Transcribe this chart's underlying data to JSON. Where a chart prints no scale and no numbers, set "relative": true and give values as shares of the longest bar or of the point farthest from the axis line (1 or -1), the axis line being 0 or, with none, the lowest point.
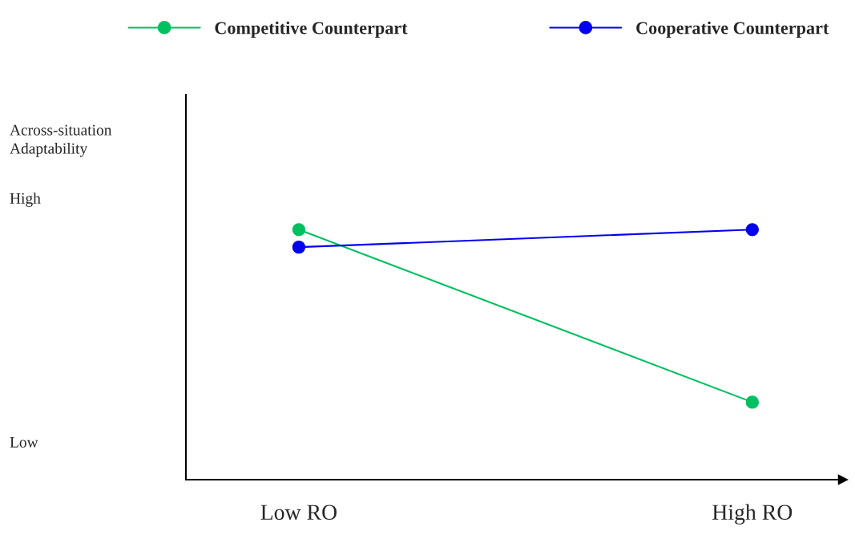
{
  "chart_data": {
    "type": "line",
    "relative": true,
    "categories": [
      "Low RO",
      "High RO"
    ],
    "series": [
      {
        "name": "Competitive Counterpart",
        "color": "#00c060",
        "values": [
          1,
          0.31
        ]
      },
      {
        "name": "Cooperative Counterpart",
        "color": "#0000ee",
        "values": [
          0.93,
          1
        ]
      }
    ],
    "annotations": [
      "Across-situation Adaptability",
      "High",
      "Low"
    ],
    "marker": "circle",
    "line_style": "solid",
    "legend": "top",
    "grid": false
  }
}
